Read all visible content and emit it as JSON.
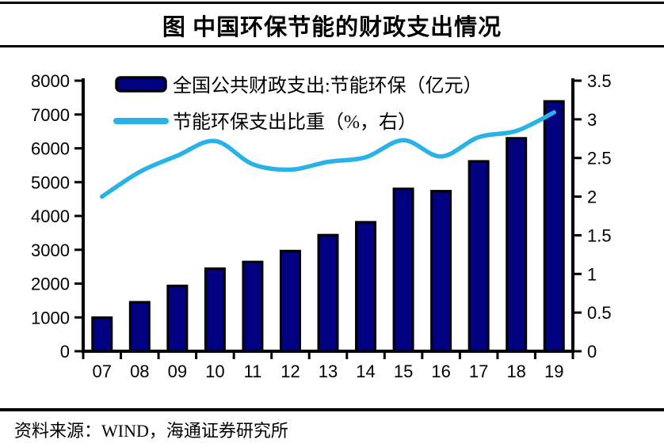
{
  "title": "图  中国环保节能的财政支出情况",
  "source": "资料来源：WIND，海通证券研究所",
  "colors": {
    "bar_fill": "#000080",
    "bar_border": "#000000",
    "line": "#29B2E8",
    "axis": "#000000",
    "text": "#000000",
    "background": "#ffffff"
  },
  "chart_data": {
    "type": "bar",
    "subtype": "combo-bar-line",
    "title": "图  中国环保节能的财政支出情况",
    "categories": [
      "07",
      "08",
      "09",
      "10",
      "11",
      "12",
      "13",
      "14",
      "15",
      "16",
      "17",
      "18",
      "19"
    ],
    "series": [
      {
        "name": "全国公共财政支出:节能环保（亿元）",
        "type": "bar",
        "axis": "left",
        "color": "#000080",
        "values": [
          996,
          1451,
          1934,
          2442,
          2641,
          2964,
          3435,
          3816,
          4803,
          4735,
          5617,
          6298,
          7390
        ]
      },
      {
        "name": "节能环保支出比重（%，右）",
        "type": "line",
        "axis": "right",
        "color": "#29B2E8",
        "values": [
          2.0,
          2.32,
          2.53,
          2.72,
          2.42,
          2.35,
          2.45,
          2.51,
          2.73,
          2.52,
          2.77,
          2.85,
          3.09
        ]
      }
    ],
    "left_axis": {
      "min": 0,
      "max": 8000,
      "step": 1000,
      "tick_labels": [
        "0",
        "1000",
        "2000",
        "3000",
        "4000",
        "5000",
        "6000",
        "7000",
        "8000"
      ]
    },
    "right_axis": {
      "min": 0,
      "max": 3.5,
      "step": 0.5,
      "tick_labels": [
        "0",
        "0.5",
        "1",
        "1.5",
        "2",
        "2.5",
        "3",
        "3.5"
      ]
    },
    "grid": false,
    "legend_position": "top-left-inside",
    "xlabel": "",
    "ylabel": ""
  }
}
